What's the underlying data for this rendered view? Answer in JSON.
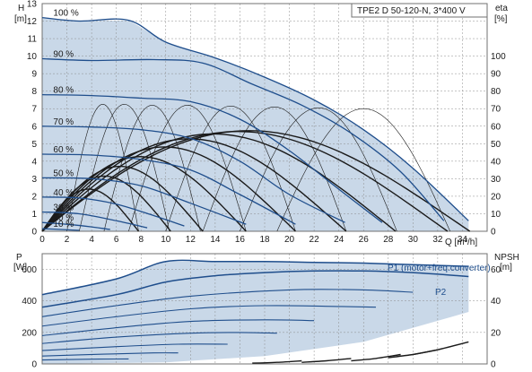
{
  "colors": {
    "curve": "#1f4e8c",
    "region_fill": "#c9d8e8",
    "grid": "#8c8c8c",
    "eff_curve": "#1a1a1a"
  },
  "chart_data": [
    {
      "type": "line",
      "title": "TPE2 D 50-120-N, 3*400 V",
      "ylabel": "H\n[m]",
      "ylabel_parts": [
        "H",
        "[m]"
      ],
      "y2label_parts": [
        "eta",
        "[%]"
      ],
      "xlabel": "Q [m³/h]",
      "grid": true,
      "xlim": [
        0,
        36
      ],
      "ylim": [
        0,
        13
      ],
      "y2lim": [
        0,
        130
      ],
      "x_ticks": [
        "0",
        "2",
        "4",
        "6",
        "8",
        "10",
        "12",
        "14",
        "16",
        "18",
        "20",
        "22",
        "24",
        "26",
        "28",
        "30",
        "32",
        "34"
      ],
      "y_ticks": [
        "0",
        "1",
        "2",
        "3",
        "4",
        "5",
        "6",
        "7",
        "8",
        "9",
        "10",
        "11",
        "12",
        "13"
      ],
      "y2_ticks": [
        "0",
        "10",
        "20",
        "30",
        "40",
        "50",
        "60",
        "70",
        "80",
        "90",
        "100"
      ],
      "speed_labels": [
        "100 %",
        "90 %",
        "80 %",
        "70 %",
        "60 %",
        "50 %",
        "40 %",
        "30 %",
        "20 %",
        "10 %"
      ],
      "series": [
        {
          "name": "100 %",
          "x": [
            0,
            3,
            7,
            10,
            14,
            18,
            22,
            26,
            30,
            34.5
          ],
          "values": [
            12.2,
            12.0,
            12.05,
            10.8,
            9.9,
            8.8,
            7.5,
            5.8,
            3.6,
            0.6
          ]
        },
        {
          "name": "90 %",
          "x": [
            0,
            4,
            9,
            13,
            17,
            21,
            25,
            29,
            32.5
          ],
          "values": [
            9.85,
            9.75,
            9.8,
            9.6,
            8.4,
            7.2,
            5.6,
            3.4,
            0.6
          ]
        },
        {
          "name": "80 %",
          "x": [
            0,
            4,
            8,
            12,
            16,
            20,
            24,
            27.5
          ],
          "values": [
            7.8,
            7.75,
            7.6,
            7.4,
            6.4,
            4.6,
            2.4,
            0.5
          ]
        },
        {
          "name": "70 %",
          "x": [
            0,
            4,
            8,
            12,
            16,
            20,
            24.5
          ],
          "values": [
            6.0,
            5.95,
            5.8,
            5.3,
            4.0,
            2.1,
            0.5
          ]
        },
        {
          "name": "60 %",
          "x": [
            0,
            4,
            8,
            12,
            16,
            20.5
          ],
          "values": [
            4.4,
            4.35,
            4.1,
            3.5,
            2.1,
            0.4
          ]
        },
        {
          "name": "50 %",
          "x": [
            0,
            4,
            8,
            12,
            16.5
          ],
          "values": [
            3.05,
            3.0,
            2.6,
            1.6,
            0.4
          ]
        },
        {
          "name": "40 %",
          "x": [
            0,
            3,
            6,
            9,
            11.5
          ],
          "values": [
            1.95,
            1.9,
            1.55,
            0.9,
            0.3
          ]
        },
        {
          "name": "30 %",
          "x": [
            0,
            3,
            6,
            8.5
          ],
          "values": [
            1.1,
            1.0,
            0.6,
            0.2
          ]
        },
        {
          "name": "20 %",
          "x": [
            0,
            2,
            4,
            5.5
          ],
          "values": [
            0.5,
            0.4,
            0.25,
            0.1
          ]
        },
        {
          "name": "10 %",
          "x": [
            0,
            1.5,
            3
          ],
          "values": [
            0.15,
            0.1,
            0.05
          ]
        }
      ],
      "max_envelope": {
        "x": [
          0,
          3,
          7,
          10,
          14,
          18,
          22,
          26,
          30,
          34.5
        ],
        "values": [
          12.2,
          12.0,
          12.05,
          10.8,
          9.9,
          8.8,
          7.5,
          5.8,
          3.6,
          0.6
        ]
      },
      "efficiency_curves": [
        {
          "x_end": 7.8,
          "peak": 2.6
        },
        {
          "x_end": 10.4,
          "peak": 3.4
        },
        {
          "x_end": 13.0,
          "peak": 4.0
        },
        {
          "x_end": 16.5,
          "peak": 4.6
        },
        {
          "x_end": 20.5,
          "peak": 5.2
        },
        {
          "x_end": 24.6,
          "peak": 5.7
        },
        {
          "x_end": 28.6,
          "peak": 6.0
        },
        {
          "x_end": 32.8,
          "peak": 6.15
        },
        {
          "x_end": 34.6,
          "peak": 6.2
        }
      ],
      "arc_curves": [
        {
          "x0": 2,
          "x1": 7.8,
          "peak": 7.25
        },
        {
          "x0": 3,
          "x1": 10.3,
          "peak": 7.25
        },
        {
          "x0": 5,
          "x1": 12.8,
          "peak": 7.2
        },
        {
          "x0": 7,
          "x1": 16.5,
          "peak": 7.2
        },
        {
          "x0": 10,
          "x1": 20.5,
          "peak": 7.15
        },
        {
          "x0": 13,
          "x1": 24.6,
          "peak": 7.1
        },
        {
          "x0": 16,
          "x1": 28.7,
          "peak": 7.05
        },
        {
          "x0": 19,
          "x1": 33,
          "peak": 7.0
        }
      ]
    },
    {
      "type": "line",
      "ylabel_parts": [
        "P",
        "[W]"
      ],
      "y2label_parts": [
        "NPSH",
        "[m]"
      ],
      "xlim": [
        0,
        36
      ],
      "ylim": [
        0,
        700
      ],
      "y2lim": [
        0,
        70
      ],
      "y_ticks": [
        "0",
        "200",
        "400",
        "600"
      ],
      "y2_ticks": [
        "0",
        "20",
        "40",
        "60"
      ],
      "grid": true,
      "series": [
        {
          "name": "P1 (motor+freq.converter)",
          "x": [
            0,
            6,
            10,
            14,
            18,
            22,
            26,
            30,
            34.5
          ],
          "values": [
            440,
            540,
            650,
            650,
            650,
            645,
            640,
            630,
            620
          ]
        },
        {
          "name": "P2",
          "x": [
            0,
            6,
            10,
            14,
            18,
            22,
            26,
            30,
            34.5
          ],
          "values": [
            360,
            440,
            520,
            560,
            580,
            590,
            590,
            580,
            555
          ]
        }
      ],
      "other_curves": [
        {
          "x": [
            0,
            6,
            12,
            20,
            26,
            30
          ],
          "values": [
            300,
            370,
            430,
            470,
            470,
            455
          ]
        },
        {
          "x": [
            0,
            6,
            12,
            18,
            24,
            27
          ],
          "values": [
            240,
            300,
            350,
            370,
            365,
            360
          ]
        },
        {
          "x": [
            0,
            6,
            12,
            18,
            22
          ],
          "values": [
            180,
            230,
            270,
            280,
            275
          ]
        },
        {
          "x": [
            0,
            6,
            12,
            16,
            19
          ],
          "values": [
            130,
            170,
            195,
            200,
            195
          ]
        },
        {
          "x": [
            0,
            6,
            11,
            15
          ],
          "values": [
            85,
            110,
            125,
            125
          ]
        },
        {
          "x": [
            0,
            5,
            9,
            11
          ],
          "values": [
            50,
            62,
            70,
            70
          ]
        },
        {
          "x": [
            0,
            4,
            7
          ],
          "values": [
            25,
            30,
            32
          ]
        }
      ],
      "npsh_curves": [
        {
          "x": [
            17,
            19,
            21
          ],
          "values": [
            0.5,
            1,
            2
          ]
        },
        {
          "x": [
            21,
            23,
            25
          ],
          "values": [
            1,
            2,
            3.5
          ]
        },
        {
          "x": [
            25,
            27,
            29
          ],
          "values": [
            2,
            3.5,
            6
          ]
        },
        {
          "x": [
            28,
            30,
            32
          ],
          "values": [
            4,
            6,
            9
          ]
        },
        {
          "x": [
            30,
            32,
            34.5
          ],
          "values": [
            6,
            9,
            14
          ]
        }
      ]
    }
  ]
}
